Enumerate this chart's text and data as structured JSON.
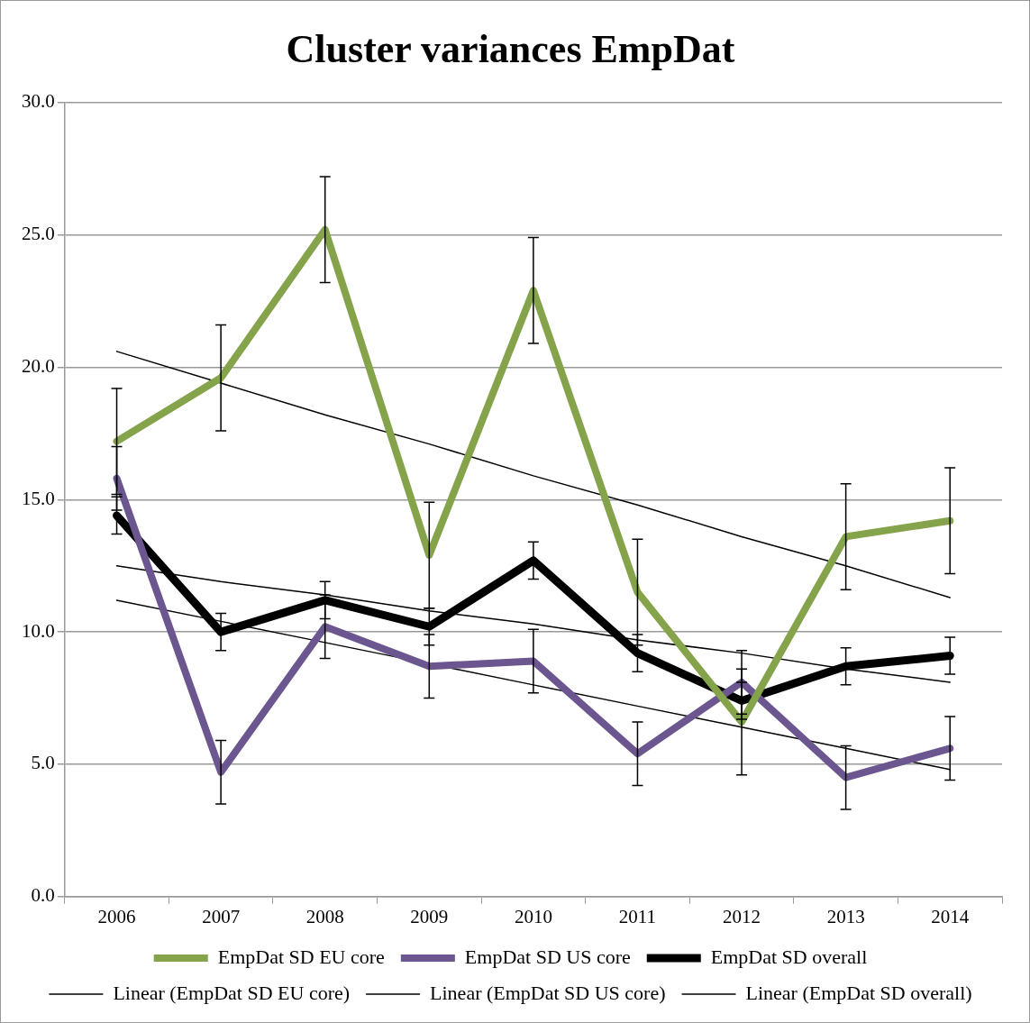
{
  "chart_data": {
    "type": "line",
    "title": "Cluster variances EmpDat",
    "categories": [
      "2006",
      "2007",
      "2008",
      "2009",
      "2010",
      "2011",
      "2012",
      "2013",
      "2014"
    ],
    "series": [
      {
        "name": "EmpDat SD EU core",
        "color": "#84a34a",
        "values": [
          17.2,
          19.6,
          25.2,
          12.9,
          22.9,
          11.5,
          6.6,
          13.6,
          14.2
        ],
        "errors": [
          2,
          2,
          2,
          2,
          2,
          2,
          2,
          2,
          2
        ]
      },
      {
        "name": "EmpDat SD US core",
        "color": "#6b568f",
        "values": [
          15.8,
          4.7,
          10.2,
          8.7,
          8.9,
          5.4,
          8.1,
          4.5,
          5.6
        ],
        "errors": [
          1.2,
          1.2,
          1.2,
          1.2,
          1.2,
          1.2,
          1.2,
          1.2,
          1.2
        ]
      },
      {
        "name": "EmpDat SD overall",
        "color": "#000000",
        "values": [
          14.4,
          10.0,
          11.2,
          10.2,
          12.7,
          9.2,
          7.4,
          8.7,
          9.1
        ],
        "errors": [
          0.7,
          0.7,
          0.7,
          0.7,
          0.7,
          0.7,
          0.7,
          0.7,
          0.7
        ]
      },
      {
        "name": "Linear (EmpDat SD EU core)",
        "type": "line",
        "color": "#000000",
        "values": [
          20.6,
          19.4,
          18.2,
          17.1,
          15.9,
          14.8,
          13.6,
          12.5,
          11.3
        ]
      },
      {
        "name": "Linear (EmpDat SD US core)",
        "type": "line",
        "color": "#000000",
        "values": [
          11.2,
          10.4,
          9.6,
          8.8,
          8.0,
          7.2,
          6.4,
          5.6,
          4.8
        ]
      },
      {
        "name": "Linear (EmpDat SD overall)",
        "type": "line",
        "color": "#000000",
        "values": [
          12.5,
          11.9,
          11.4,
          10.8,
          10.3,
          9.7,
          9.2,
          8.6,
          8.1
        ]
      }
    ],
    "ylim": [
      0,
      30
    ],
    "yticks": [
      {
        "value": 0,
        "label": "0.0"
      },
      {
        "value": 5,
        "label": "5.0"
      },
      {
        "value": 10,
        "label": "10.0"
      },
      {
        "value": 15,
        "label": "15.0"
      },
      {
        "value": 20,
        "label": "20.0"
      },
      {
        "value": 25,
        "label": "25.0"
      },
      {
        "value": 30,
        "label": "30.0"
      }
    ],
    "grid": "y",
    "legend": "bottom",
    "marker": "none",
    "line_style": "solid"
  }
}
